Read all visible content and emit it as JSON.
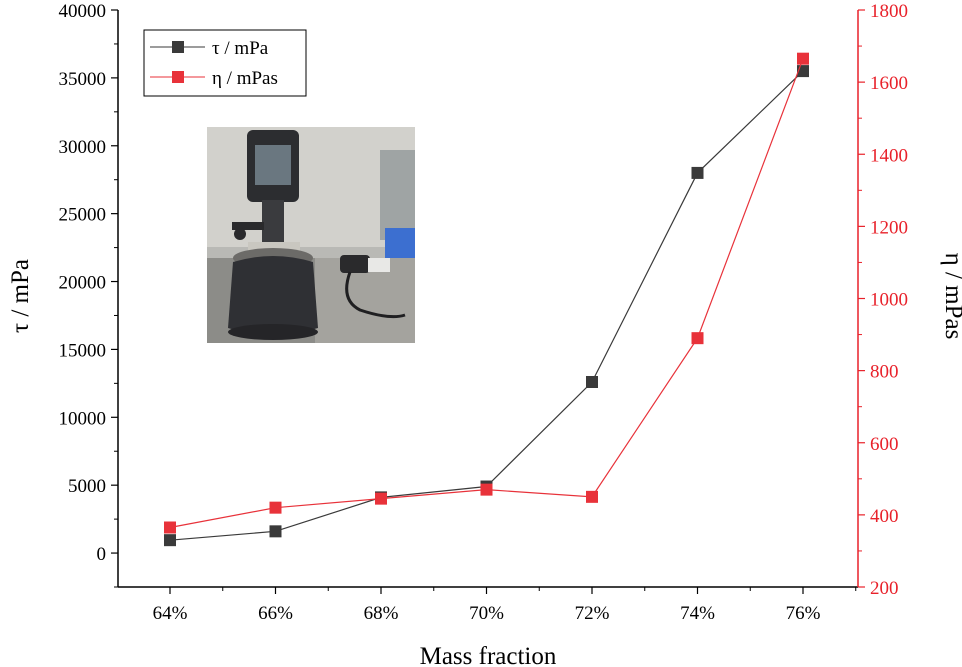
{
  "chart_data": {
    "type": "line",
    "xlabel": "Mass fraction",
    "categories": [
      "64%",
      "66%",
      "68%",
      "70%",
      "72%",
      "74%",
      "76%"
    ],
    "y_left": {
      "label": "τ / mPa",
      "range": [
        -2500,
        40000
      ],
      "ticks": [
        0,
        5000,
        10000,
        15000,
        20000,
        25000,
        30000,
        35000,
        40000
      ],
      "color": "#000000"
    },
    "y_right": {
      "label": "η / mPas",
      "range": [
        200,
        1800
      ],
      "ticks": [
        200,
        400,
        600,
        800,
        1000,
        1200,
        1400,
        1600,
        1800
      ],
      "color": "#e8212a"
    },
    "series": [
      {
        "name": "τ / mPa",
        "axis": "left",
        "color": "#3a3a3a",
        "marker": "square",
        "values": [
          950,
          1600,
          4100,
          4900,
          12600,
          28000,
          35500
        ]
      },
      {
        "name": "η / mPas",
        "axis": "right",
        "color": "#e8323a",
        "marker": "square",
        "values": [
          365,
          420,
          445,
          470,
          450,
          890,
          1665
        ]
      }
    ],
    "legend_position": "top-left",
    "grid": false,
    "inset_image": "rheometer-photo"
  }
}
